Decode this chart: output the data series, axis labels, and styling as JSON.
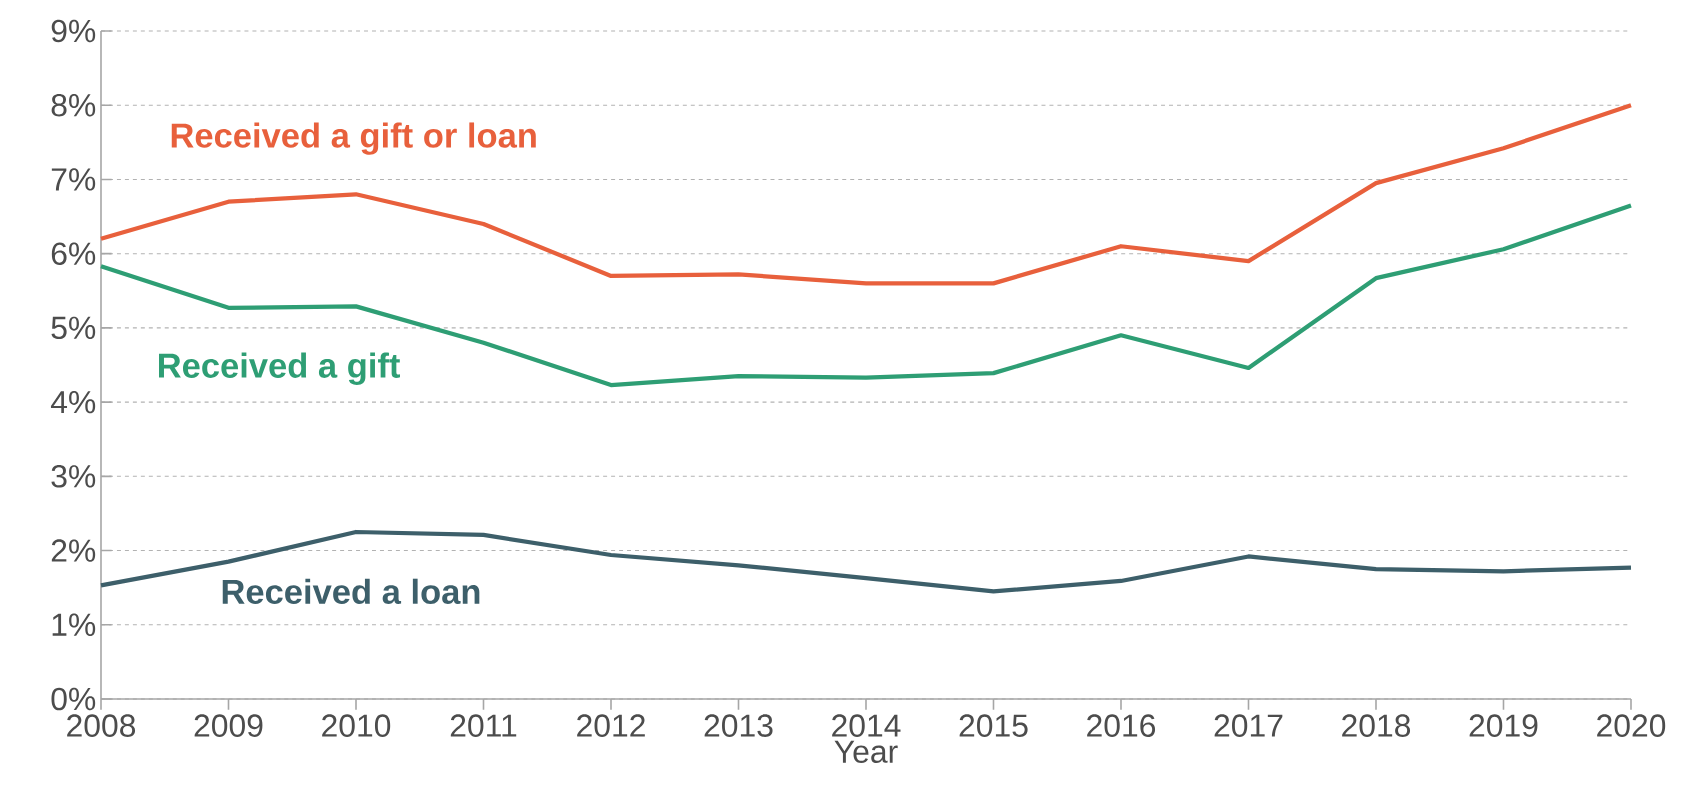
{
  "chart_data": {
    "type": "line",
    "xlabel": "Year",
    "x": [
      2008,
      2009,
      2010,
      2011,
      2012,
      2013,
      2014,
      2015,
      2016,
      2017,
      2018,
      2019,
      2020
    ],
    "xlim": [
      2008,
      2020
    ],
    "xticks": [
      2008,
      2009,
      2010,
      2011,
      2012,
      2013,
      2014,
      2015,
      2016,
      2017,
      2018,
      2019,
      2020
    ],
    "ylim": [
      0,
      9
    ],
    "yticks": [
      {
        "value": 0,
        "label": "0%"
      },
      {
        "value": 1,
        "label": "1%"
      },
      {
        "value": 2,
        "label": "2%"
      },
      {
        "value": 3,
        "label": "3%"
      },
      {
        "value": 4,
        "label": "4%"
      },
      {
        "value": 5,
        "label": "5%"
      },
      {
        "value": 6,
        "label": "6%"
      },
      {
        "value": 7,
        "label": "7%"
      },
      {
        "value": 8,
        "label": "8%"
      },
      {
        "value": 9,
        "label": "9%"
      }
    ],
    "grid": "y",
    "legend": false,
    "marker": "none",
    "line_style": "solid",
    "series": [
      {
        "name": "Received a gift or loan",
        "color": "#e8603c",
        "values": [
          6.2,
          6.7,
          6.8,
          6.4,
          5.7,
          5.72,
          5.6,
          5.6,
          6.1,
          5.9,
          6.95,
          7.42,
          8.0
        ]
      },
      {
        "name": "Received a gift",
        "color": "#2e9e74",
        "values": [
          5.83,
          5.27,
          5.29,
          4.8,
          4.23,
          4.35,
          4.33,
          4.39,
          4.9,
          4.46,
          5.67,
          6.06,
          6.65
        ]
      },
      {
        "name": "Received a loan",
        "color": "#3d5f6a",
        "values": [
          1.53,
          1.85,
          2.25,
          2.21,
          1.94,
          1.8,
          1.63,
          1.45,
          1.59,
          1.92,
          1.75,
          1.72,
          1.77
        ]
      }
    ]
  }
}
